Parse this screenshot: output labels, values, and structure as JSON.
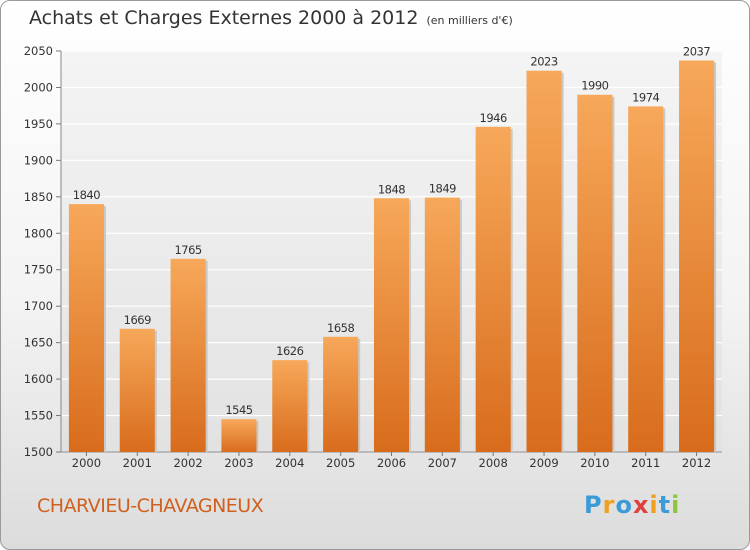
{
  "header": {
    "title": "Achats et Charges Externes 2000 à 2012",
    "unit": "(en milliers d'€)"
  },
  "footer": {
    "town": "CHARVIEU-CHAVAGNEUX",
    "logo_letters": [
      "P",
      "r",
      "o",
      "x",
      "i",
      "t",
      "i"
    ],
    "logo_colors": [
      "#3a9bd8",
      "#f0a020",
      "#3a9bd8",
      "#e04040",
      "#f0a020",
      "#3a9bd8",
      "#8cc63f"
    ]
  },
  "chart_data": {
    "type": "bar",
    "categories": [
      "2000",
      "2001",
      "2002",
      "2003",
      "2004",
      "2005",
      "2006",
      "2007",
      "2008",
      "2009",
      "2010",
      "2011",
      "2012"
    ],
    "values": [
      1840,
      1669,
      1765,
      1545,
      1626,
      1658,
      1848,
      1849,
      1946,
      2023,
      1990,
      1974,
      2037
    ],
    "ylim": [
      1500,
      2050
    ],
    "yticks": [
      1500,
      1550,
      1600,
      1650,
      1700,
      1750,
      1800,
      1850,
      1900,
      1950,
      2000,
      2050
    ],
    "grid": true,
    "bar_color_top": "#f7a85a",
    "bar_color_bottom": "#d86c1c"
  }
}
